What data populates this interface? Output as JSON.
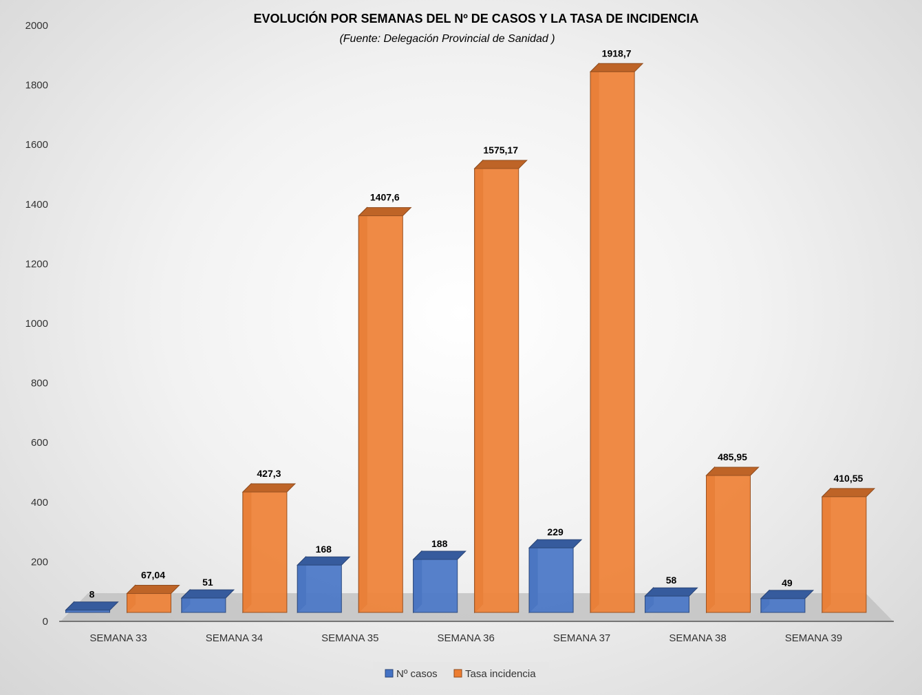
{
  "chart_data": {
    "type": "bar",
    "title": "EVOLUCIÓN POR SEMANAS DEL Nº DE CASOS Y LA TASA DE INCIDENCIA",
    "subtitle": "(Fuente: Delegación Provincial de Sanidad )",
    "categories": [
      "SEMANA 33",
      "SEMANA 34",
      "SEMANA 35",
      "SEMANA 36",
      "SEMANA 37",
      "SEMANA 38",
      "SEMANA 39"
    ],
    "series": [
      {
        "name": "Nº casos",
        "color": "#4472C4",
        "values": [
          8,
          51,
          168,
          188,
          229,
          58,
          49
        ],
        "labels": [
          "8",
          "51",
          "168",
          "188",
          "229",
          "58",
          "49"
        ]
      },
      {
        "name": "Tasa incidencia",
        "color": "#ED7D31",
        "values": [
          67.04,
          427.3,
          1407.6,
          1575.17,
          1918.7,
          485.95,
          410.55
        ],
        "labels": [
          "67,04",
          "427,3",
          "1407,6",
          "1575,17",
          "1918,7",
          "485,95",
          "410,55"
        ]
      }
    ],
    "ylim": [
      0,
      2000
    ],
    "yticks": [
      0,
      200,
      400,
      600,
      800,
      1000,
      1200,
      1400,
      1600,
      1800,
      2000
    ],
    "legend_position": "bottom",
    "style": "3d-column"
  }
}
